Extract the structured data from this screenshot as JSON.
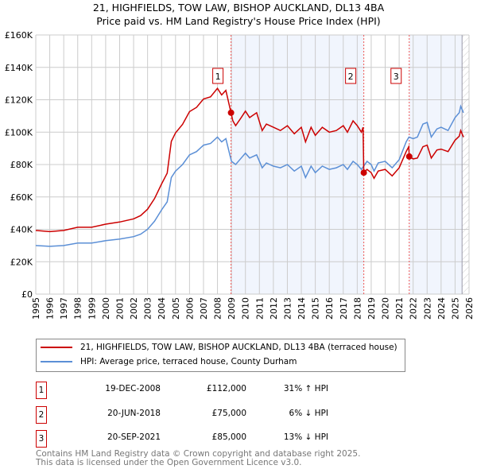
{
  "title": "21, HIGHFIELDS, TOW LAW, BISHOP AUCKLAND, DL13 4BA",
  "subtitle": "Price paid vs. HM Land Registry's House Price Index (HPI)",
  "chart_data": {
    "type": "line",
    "xlim": [
      1995,
      2026
    ],
    "ylim": [
      0,
      160000
    ],
    "y_ticks": [
      {
        "v": 0,
        "label": "£0"
      },
      {
        "v": 20000,
        "label": "£20K"
      },
      {
        "v": 40000,
        "label": "£40K"
      },
      {
        "v": 60000,
        "label": "£60K"
      },
      {
        "v": 80000,
        "label": "£80K"
      },
      {
        "v": 100000,
        "label": "£100K"
      },
      {
        "v": 120000,
        "label": "£120K"
      },
      {
        "v": 140000,
        "label": "£140K"
      },
      {
        "v": 160000,
        "label": "£160K"
      }
    ],
    "x_ticks": [
      "1995",
      "1996",
      "1997",
      "1998",
      "1999",
      "2000",
      "2001",
      "2002",
      "2003",
      "2004",
      "2005",
      "2006",
      "2007",
      "2008",
      "2009",
      "2010",
      "2011",
      "2012",
      "2013",
      "2014",
      "2015",
      "2016",
      "2017",
      "2018",
      "2019",
      "2020",
      "2021",
      "2022",
      "2023",
      "2024",
      "2025",
      "2026"
    ],
    "series": [
      {
        "name": "21, HIGHFIELDS, TOW LAW, BISHOP AUCKLAND, DL13 4BA (terraced house)",
        "color": "#cc0000",
        "x": [
          1995,
          1996,
          1997,
          1998,
          1999,
          2000,
          2001,
          2002,
          2002.5,
          2003,
          2003.5,
          2004,
          2004.4,
          2004.7,
          2005,
          2005.5,
          2006,
          2006.5,
          2007,
          2007.5,
          2008,
          2008.3,
          2008.6,
          2008.97,
          2009.1,
          2009.3,
          2009.7,
          2010,
          2010.3,
          2010.8,
          2011.2,
          2011.5,
          2012,
          2012.5,
          2013,
          2013.5,
          2014,
          2014.3,
          2014.7,
          2015,
          2015.5,
          2016,
          2016.5,
          2017,
          2017.3,
          2017.7,
          2018,
          2018.3,
          2018.42,
          2018.47,
          2018.7,
          2019,
          2019.2,
          2019.5,
          2020,
          2020.5,
          2021,
          2021.5,
          2021.68,
          2021.72,
          2022,
          2022.3,
          2022.7,
          2023,
          2023.3,
          2023.7,
          2024,
          2024.5,
          2025,
          2025.3,
          2025.4,
          2025.6
        ],
        "y": [
          39300,
          38600,
          39300,
          41300,
          41300,
          43200,
          44500,
          46500,
          48500,
          52400,
          59000,
          68000,
          74700,
          94300,
          99600,
          104800,
          112700,
          115300,
          120500,
          121800,
          127000,
          123000,
          125800,
          112000,
          107000,
          104000,
          109000,
          113000,
          109000,
          112000,
          101000,
          105000,
          103000,
          101000,
          104000,
          99000,
          103000,
          94000,
          103000,
          98000,
          103000,
          100000,
          101000,
          104000,
          100000,
          107000,
          104000,
          100000,
          103000,
          75000,
          77000,
          75000,
          71500,
          76000,
          77000,
          73000,
          78000,
          88000,
          91000,
          85000,
          83500,
          84000,
          91000,
          92000,
          84000,
          89000,
          89500,
          88000,
          95000,
          97500,
          101000,
          97000
        ]
      },
      {
        "name": "HPI: Average price, terraced house, County Durham",
        "color": "#5b8fd6",
        "x": [
          1995,
          1996,
          1997,
          1998,
          1999,
          2000,
          2001,
          2002,
          2002.5,
          2003,
          2003.5,
          2004,
          2004.4,
          2004.7,
          2005,
          2005.5,
          2006,
          2006.5,
          2007,
          2007.5,
          2008,
          2008.3,
          2008.6,
          2009,
          2009.3,
          2009.7,
          2010,
          2010.3,
          2010.8,
          2011.2,
          2011.5,
          2012,
          2012.5,
          2013,
          2013.5,
          2014,
          2014.3,
          2014.7,
          2015,
          2015.5,
          2016,
          2016.5,
          2017,
          2017.3,
          2017.7,
          2018,
          2018.3,
          2018.7,
          2019,
          2019.2,
          2019.5,
          2020,
          2020.5,
          2021,
          2021.5,
          2021.7,
          2022,
          2022.3,
          2022.7,
          2023,
          2023.3,
          2023.7,
          2024,
          2024.5,
          2025,
          2025.3,
          2025.4,
          2025.6
        ],
        "y": [
          30000,
          29500,
          30000,
          31500,
          31500,
          33000,
          34000,
          35500,
          37000,
          40000,
          45000,
          52000,
          57000,
          72000,
          76000,
          80000,
          86000,
          88000,
          92000,
          93000,
          97000,
          94000,
          96000,
          82000,
          80000,
          84000,
          87000,
          84000,
          86000,
          78000,
          81000,
          79000,
          78000,
          80000,
          76000,
          79000,
          72000,
          79000,
          75000,
          79000,
          77000,
          78000,
          80000,
          77000,
          82000,
          80000,
          77000,
          82000,
          80000,
          76000,
          81000,
          82000,
          78000,
          83000,
          94000,
          97000,
          96000,
          97000,
          105000,
          106000,
          97000,
          102000,
          103000,
          101000,
          109000,
          112000,
          116000,
          112000
        ]
      }
    ],
    "sales": [
      {
        "label": "1",
        "date": "19-DEC-2008",
        "x": 2008.97,
        "price": "£112,000",
        "value": 112000,
        "hpi": "31% ↑ HPI"
      },
      {
        "label": "2",
        "date": "20-JUN-2018",
        "x": 2018.47,
        "price": "£75,000",
        "value": 75000,
        "hpi": "  6% ↓ HPI"
      },
      {
        "label": "3",
        "date": "20-SEP-2021",
        "x": 2021.72,
        "price": "£85,000",
        "value": 85000,
        "hpi": "13% ↓ HPI"
      }
    ],
    "forecast_start": 2025.5
  },
  "footer": [
    "Contains HM Land Registry data © Crown copyright and database right 2025.",
    "This data is licensed under the Open Government Licence v3.0."
  ]
}
